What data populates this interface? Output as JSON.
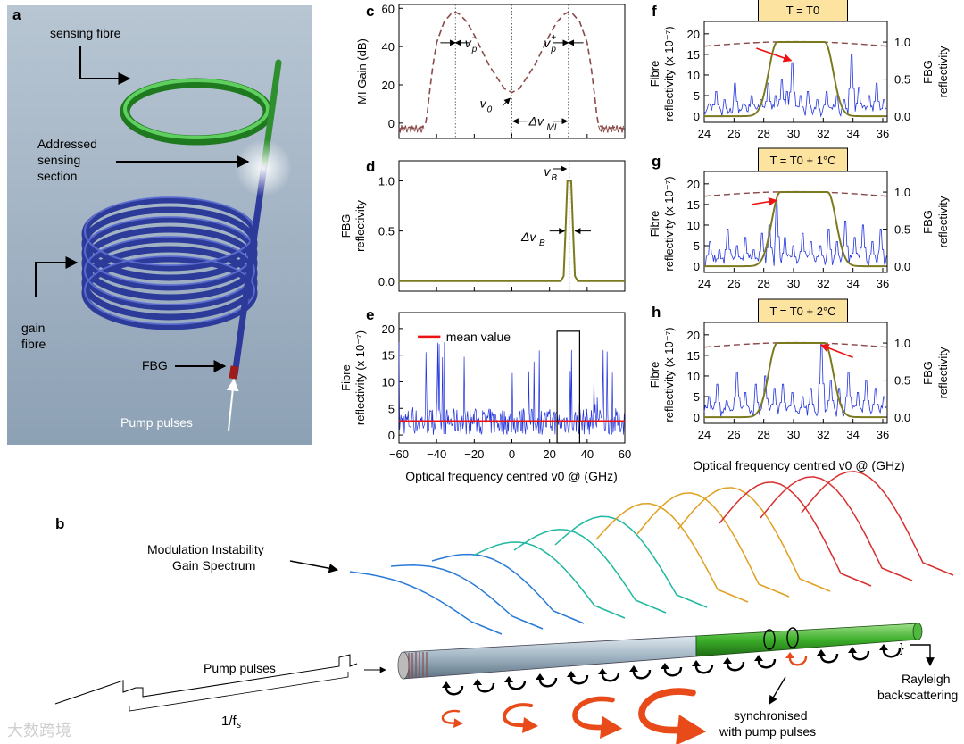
{
  "panel_labels": {
    "a": "a",
    "b": "b",
    "c": "c",
    "d": "d",
    "e": "e",
    "f": "f",
    "g": "g",
    "h": "h"
  },
  "panel_a": {
    "sensing_fibre": "sensing fibre",
    "addressed_line1": "Addressed",
    "addressed_line2": "sensing",
    "addressed_line3": "section",
    "gain_line1": "gain",
    "gain_line2": "fibre",
    "fbg": "FBG",
    "pump": "Pump pulses"
  },
  "panel_b": {
    "mi_line1": "Modulation Instability",
    "mi_line2": "Gain Spectrum",
    "pump": "Pump pulses",
    "period": "1/f",
    "period_sub": "s",
    "rayleigh_line1": "Rayleigh",
    "rayleigh_line2": "backscattering",
    "sync_line1": "synchronised",
    "sync_line2": "with pump pulses"
  },
  "x_axis_label": "Optical frequency centred v0 @ (GHz)",
  "x_axis_label_right": "Optical frequency centred v0 @ (GHz)",
  "chart_data": [
    {
      "id": "c",
      "type": "line",
      "ylabel": "MI Gain (dB)",
      "xlim": [
        -60,
        60
      ],
      "ylim": [
        -8,
        62
      ],
      "xticks": [
        -60,
        -40,
        -20,
        0,
        20,
        40,
        60
      ],
      "yticks": [
        0,
        20,
        40,
        60
      ],
      "series": [
        {
          "color": "#8a4a4a",
          "dashed": true,
          "x": [
            -60,
            -55,
            -50,
            -46,
            -45,
            -44,
            -42,
            -40,
            -36,
            -32,
            -30,
            -28,
            -24,
            -20,
            -16,
            -12,
            -8,
            -4,
            0,
            4,
            8,
            12,
            16,
            20,
            24,
            28,
            30,
            32,
            36,
            40,
            42,
            44,
            45,
            46,
            50,
            55,
            60
          ],
          "y": [
            -3,
            -2,
            -3,
            -1,
            5,
            14,
            30,
            42,
            53,
            57.5,
            58,
            57,
            53,
            46,
            38,
            30,
            24,
            18,
            16,
            18,
            24,
            30,
            38,
            46,
            53,
            57,
            58,
            57.5,
            53,
            42,
            30,
            14,
            5,
            -1,
            -3,
            -2,
            -3
          ]
        }
      ],
      "annotations": [
        "v_p^-",
        "v_p^+",
        "v_0",
        "Δv_MI"
      ]
    },
    {
      "id": "d",
      "type": "line",
      "ylabel": "FBG reflectivity",
      "xlim": [
        -60,
        60
      ],
      "ylim": [
        -0.1,
        1.2
      ],
      "yticks": [
        0.0,
        0.5,
        1.0
      ],
      "series": [
        {
          "color": "#7c7a1e",
          "x": [
            -60,
            26,
            27.5,
            28.5,
            29.5,
            31.5,
            32.5,
            33.5,
            35,
            60
          ],
          "y": [
            0,
            0,
            0.05,
            0.5,
            1.0,
            1.0,
            0.5,
            0.05,
            0,
            0
          ]
        }
      ],
      "annotations": [
        "v_B",
        "Δv_B"
      ]
    },
    {
      "id": "e",
      "type": "line",
      "ylabel": "Fibre reflectivity (x 10^-7)",
      "xlim": [
        -60,
        60
      ],
      "ylim": [
        -1.5,
        23
      ],
      "yticks": [
        0,
        5,
        10,
        15,
        20
      ],
      "mean_value": 2.6,
      "legend": "mean value",
      "highlight_box": [
        24,
        36
      ]
    },
    {
      "id": "f",
      "type": "line",
      "title": "T = T0",
      "ylabel": "Fibre reflectivity (x 10^-7)",
      "ylabel2": "FBG reflectivity",
      "xlim": [
        24,
        36.3
      ],
      "ylim": [
        -1.5,
        23
      ],
      "xticks": [
        24,
        26,
        28,
        30,
        32,
        34,
        36
      ],
      "yticks": [
        0,
        5,
        10,
        15,
        20
      ],
      "yticks2": [
        0.0,
        0.5,
        1.0
      ],
      "fbg_center": 30.5,
      "peaks": [
        [
          24.3,
          3
        ],
        [
          24.8,
          6
        ],
        [
          25.4,
          4
        ],
        [
          26.1,
          8
        ],
        [
          26.6,
          3
        ],
        [
          27.2,
          5
        ],
        [
          27.8,
          4
        ],
        [
          28.3,
          8
        ],
        [
          28.8,
          5
        ],
        [
          29.2,
          9
        ],
        [
          29.6,
          6
        ],
        [
          29.9,
          13
        ],
        [
          30.5,
          5
        ],
        [
          31.0,
          6
        ],
        [
          31.6,
          4
        ],
        [
          32.2,
          6
        ],
        [
          32.9,
          5
        ],
        [
          33.4,
          4
        ],
        [
          33.9,
          15
        ],
        [
          34.4,
          7
        ],
        [
          35.1,
          5
        ],
        [
          35.6,
          8
        ],
        [
          36.1,
          4
        ]
      ]
    },
    {
      "id": "g",
      "type": "line",
      "title": "T = T0 + 1°C",
      "ylabel": "Fibre reflectivity (x 10^-7)",
      "ylabel2": "FBG reflectivity",
      "xlim": [
        24,
        36.3
      ],
      "ylim": [
        -1.5,
        23
      ],
      "xticks": [
        24,
        26,
        28,
        30,
        32,
        34,
        36
      ],
      "yticks": [
        0,
        5,
        10,
        15,
        20
      ],
      "yticks2": [
        0.0,
        0.5,
        1.0
      ],
      "fbg_center": 30.7,
      "peaks": [
        [
          24.4,
          6
        ],
        [
          25.0,
          4
        ],
        [
          25.6,
          9
        ],
        [
          26.2,
          5
        ],
        [
          26.8,
          7
        ],
        [
          27.3,
          4
        ],
        [
          27.9,
          8
        ],
        [
          28.4,
          10
        ],
        [
          28.9,
          16
        ],
        [
          29.4,
          7
        ],
        [
          30.0,
          5
        ],
        [
          30.6,
          8
        ],
        [
          31.2,
          6
        ],
        [
          31.8,
          5
        ],
        [
          32.4,
          9
        ],
        [
          32.9,
          6
        ],
        [
          33.5,
          11
        ],
        [
          34.1,
          7
        ],
        [
          34.7,
          10
        ],
        [
          35.3,
          6
        ],
        [
          35.9,
          9
        ]
      ]
    },
    {
      "id": "h",
      "type": "line",
      "title": "T = T0 + 2°C",
      "ylabel": "Fibre reflectivity (x 10^-7)",
      "ylabel2": "FBG reflectivity",
      "xlim": [
        24,
        36.3
      ],
      "ylim": [
        -1.5,
        23
      ],
      "xticks": [
        24,
        26,
        28,
        30,
        32,
        34,
        36
      ],
      "yticks": [
        0,
        5,
        10,
        15,
        20
      ],
      "yticks2": [
        0.0,
        0.5,
        1.0
      ],
      "fbg_center": 30.5,
      "peaks": [
        [
          24.3,
          5
        ],
        [
          24.9,
          8
        ],
        [
          25.5,
          4
        ],
        [
          26.2,
          11
        ],
        [
          26.8,
          6
        ],
        [
          27.5,
          8
        ],
        [
          28.1,
          10
        ],
        [
          28.7,
          7
        ],
        [
          29.3,
          8
        ],
        [
          29.9,
          6
        ],
        [
          30.6,
          5
        ],
        [
          31.2,
          7
        ],
        [
          31.9,
          18
        ],
        [
          32.5,
          9
        ],
        [
          33.1,
          7
        ],
        [
          33.7,
          11
        ],
        [
          34.3,
          6
        ],
        [
          34.9,
          9
        ],
        [
          35.5,
          7
        ],
        [
          36.1,
          5
        ]
      ]
    }
  ],
  "colors": {
    "blue": "#2233dd",
    "red": "#ee1111",
    "olive": "#7c7a1e",
    "dashed": "#8a4a4a",
    "tag_bg": "#fde3a0",
    "panel_bg": "#a8b8c8",
    "arrow": "#e84a1a"
  },
  "watermark": "大数跨境"
}
